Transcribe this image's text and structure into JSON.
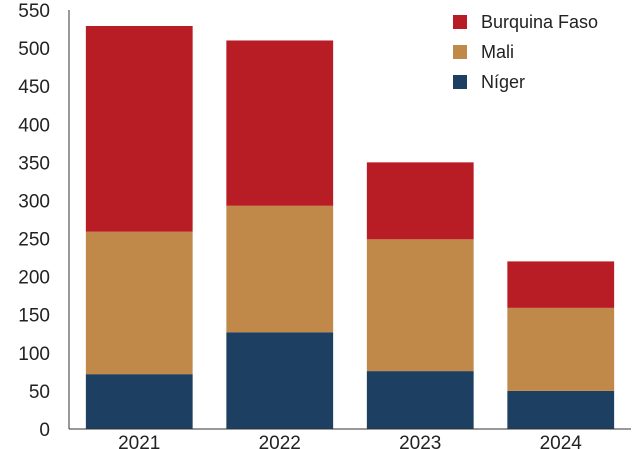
{
  "chart_data": {
    "type": "bar",
    "stacked": true,
    "categories": [
      "2021",
      "2022",
      "2023",
      "2024"
    ],
    "series": [
      {
        "name": "Níger",
        "color": "#1d3f62",
        "values": [
          72,
          127,
          76,
          50
        ]
      },
      {
        "name": "Mali",
        "color": "#c0894a",
        "values": [
          187,
          166,
          173,
          109
        ]
      },
      {
        "name": "Burquina Faso",
        "color": "#b81c24",
        "values": [
          270,
          217,
          101,
          61
        ]
      }
    ],
    "legend_order": [
      "Burquina Faso",
      "Mali",
      "Níger"
    ],
    "ylim": [
      0,
      550
    ],
    "yticks": [
      0,
      50,
      100,
      150,
      200,
      250,
      300,
      350,
      400,
      450,
      500,
      550
    ],
    "legend_position": "top-right",
    "grid": false
  }
}
